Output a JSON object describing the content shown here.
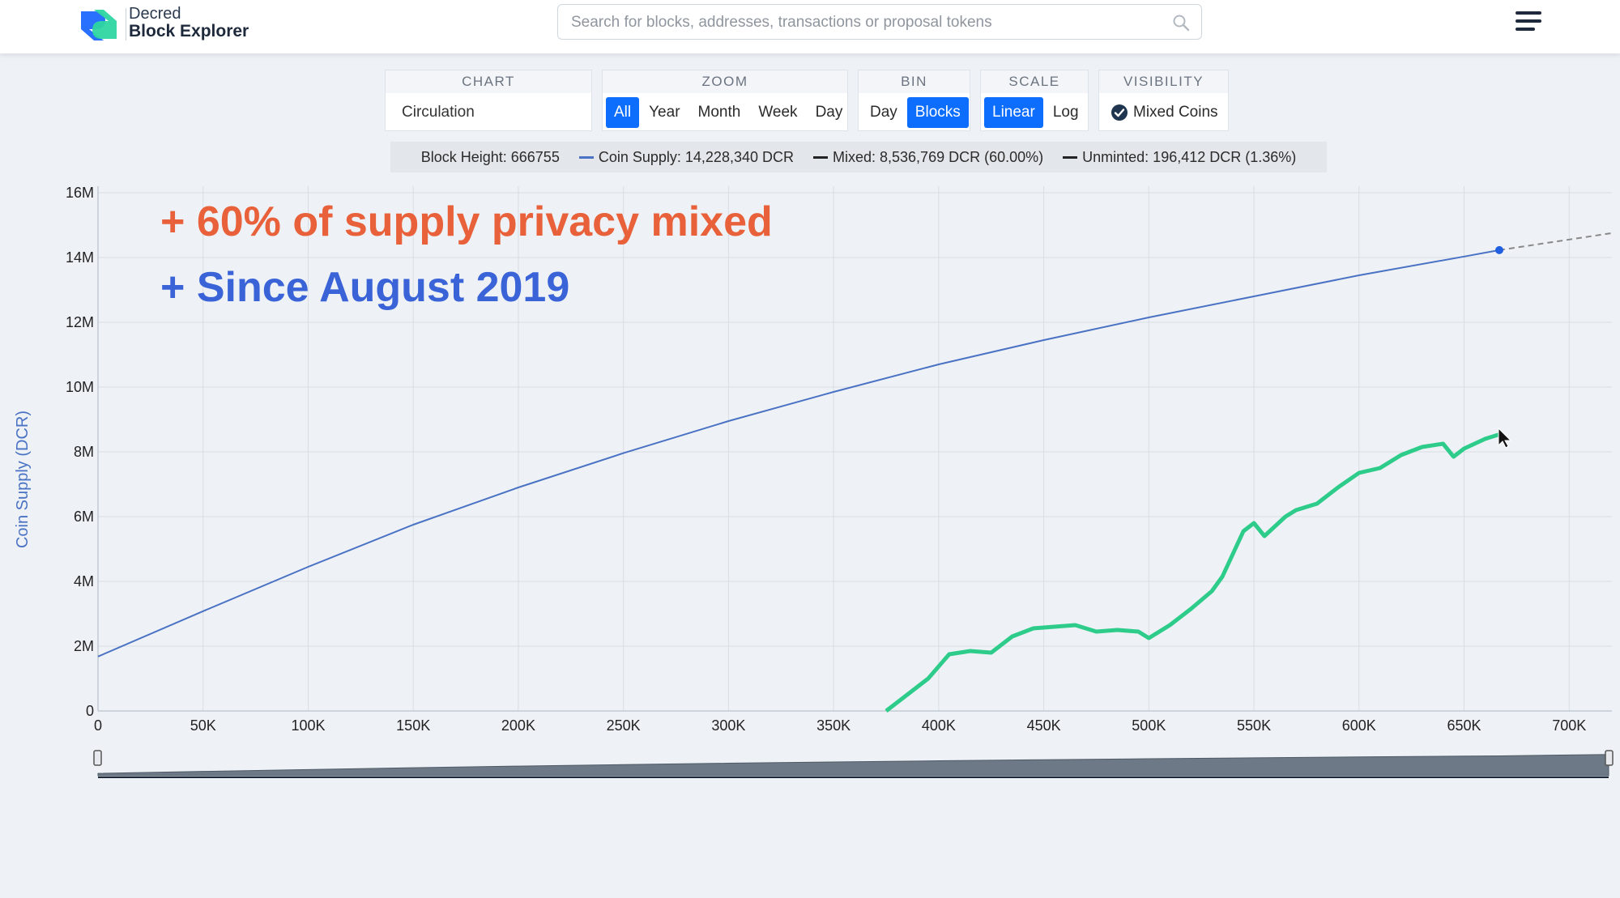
{
  "header": {
    "brand_top": "Decred",
    "brand_bottom": "Block Explorer",
    "search_placeholder": "Search for blocks, addresses, transactions or proposal tokens"
  },
  "controls": {
    "chart": {
      "label": "CHART",
      "value": "Circulation"
    },
    "zoom": {
      "label": "ZOOM",
      "options": [
        "All",
        "Year",
        "Month",
        "Week",
        "Day"
      ],
      "active": "All"
    },
    "bin": {
      "label": "BIN",
      "options": [
        "Day",
        "Blocks"
      ],
      "active": "Blocks"
    },
    "scale": {
      "label": "SCALE",
      "options": [
        "Linear",
        "Log"
      ],
      "active": "Linear"
    },
    "visibility": {
      "label": "VISIBILITY",
      "option": "Mixed Coins",
      "checked": true
    }
  },
  "legend": {
    "block_height": "Block Height: 666755",
    "coin_supply": "Coin Supply: 14,228,340 DCR",
    "mixed": "Mixed: 8,536,769 DCR (60.00%)",
    "unminted": "Unminted: 196,412 DCR (1.36%)"
  },
  "annotations": {
    "line1": "+ 60% of supply privacy mixed",
    "line2": "+ Since August 2019"
  },
  "colors": {
    "supply": "#4a72c4",
    "mixed": "#2ecc8a",
    "projection": "#888888",
    "annotation1": "#e8613a",
    "annotation2": "#3a63d8",
    "accent": "#0d6efd"
  },
  "chart_data": {
    "type": "line",
    "ylabel": "Coin Supply (DCR)",
    "xlim": [
      0,
      720000
    ],
    "ylim": [
      0,
      16000000
    ],
    "x_ticks": [
      0,
      50000,
      100000,
      150000,
      200000,
      250000,
      300000,
      350000,
      400000,
      450000,
      500000,
      550000,
      600000,
      650000,
      700000
    ],
    "x_tick_labels": [
      "0",
      "50K",
      "100K",
      "150K",
      "200K",
      "250K",
      "300K",
      "350K",
      "400K",
      "450K",
      "500K",
      "550K",
      "600K",
      "650K",
      "700K"
    ],
    "y_ticks": [
      0,
      2000000,
      4000000,
      6000000,
      8000000,
      10000000,
      12000000,
      14000000,
      16000000
    ],
    "y_tick_labels": [
      "0",
      "2M",
      "4M",
      "6M",
      "8M",
      "10M",
      "12M",
      "14M",
      "16M"
    ],
    "grid": true,
    "series": [
      {
        "name": "Coin Supply",
        "x": [
          0,
          50000,
          100000,
          150000,
          200000,
          250000,
          300000,
          350000,
          400000,
          450000,
          500000,
          550000,
          600000,
          650000,
          666755
        ],
        "y": [
          1680000,
          3080000,
          4450000,
          5750000,
          6900000,
          7960000,
          8950000,
          9850000,
          10700000,
          11450000,
          12150000,
          12800000,
          13450000,
          14030000,
          14228340
        ]
      },
      {
        "name": "Mixed",
        "x": [
          375000,
          385000,
          395000,
          405000,
          415000,
          425000,
          435000,
          445000,
          455000,
          465000,
          475000,
          485000,
          495000,
          500000,
          510000,
          520000,
          530000,
          535000,
          540000,
          545000,
          550000,
          555000,
          560000,
          565000,
          570000,
          580000,
          590000,
          600000,
          610000,
          620000,
          630000,
          640000,
          645000,
          650000,
          660000,
          666755
        ],
        "y": [
          0,
          500000,
          1000000,
          1750000,
          1850000,
          1800000,
          2300000,
          2550000,
          2600000,
          2650000,
          2450000,
          2500000,
          2450000,
          2250000,
          2650000,
          3150000,
          3700000,
          4150000,
          4850000,
          5550000,
          5800000,
          5400000,
          5700000,
          6000000,
          6200000,
          6400000,
          6900000,
          7350000,
          7500000,
          7900000,
          8150000,
          8250000,
          7850000,
          8100000,
          8400000,
          8536769
        ]
      },
      {
        "name": "Unminted",
        "x": [
          666755,
          720000
        ],
        "y": [
          14228340,
          14750000
        ],
        "style": "dashed"
      }
    ]
  }
}
